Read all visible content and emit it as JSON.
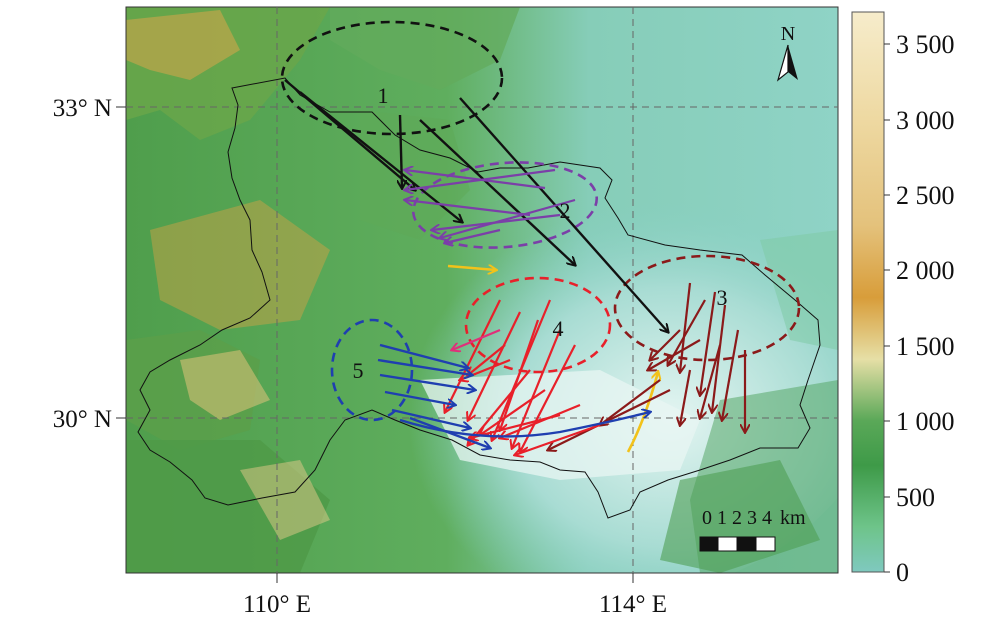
{
  "map": {
    "north_label": "N",
    "lat_labels": [
      "33° N",
      "30° N"
    ],
    "lon_labels": [
      "110° E",
      "114° E"
    ],
    "region_labels": [
      "1",
      "2",
      "3",
      "4",
      "5"
    ],
    "region_colors": {
      "1": "#111111",
      "2": "#7b3fa8",
      "3": "#8b1a1a",
      "4": "#e8202a",
      "5": "#1f3fb0"
    },
    "highlight_arrow_color": "#f2c21a"
  },
  "scalebar": {
    "ticks": [
      "0",
      "1",
      "2",
      "3",
      "4"
    ],
    "unit": "km"
  },
  "colorbar": {
    "labels": [
      "3 500",
      "3 000",
      "2 500",
      "2 000",
      "1 500",
      "1 000",
      "500",
      "0"
    ],
    "stops": [
      {
        "value": 0,
        "color": "#7fc9bf"
      },
      {
        "value": 300,
        "color": "#6ec48a"
      },
      {
        "value": 700,
        "color": "#3e9a48"
      },
      {
        "value": 1000,
        "color": "#5aa858"
      },
      {
        "value": 1400,
        "color": "#e6dfa6"
      },
      {
        "value": 1800,
        "color": "#d89d3a"
      },
      {
        "value": 2300,
        "color": "#e4c27c"
      },
      {
        "value": 3000,
        "color": "#eed9a2"
      },
      {
        "value": 3700,
        "color": "#f6eccb"
      }
    ]
  }
}
